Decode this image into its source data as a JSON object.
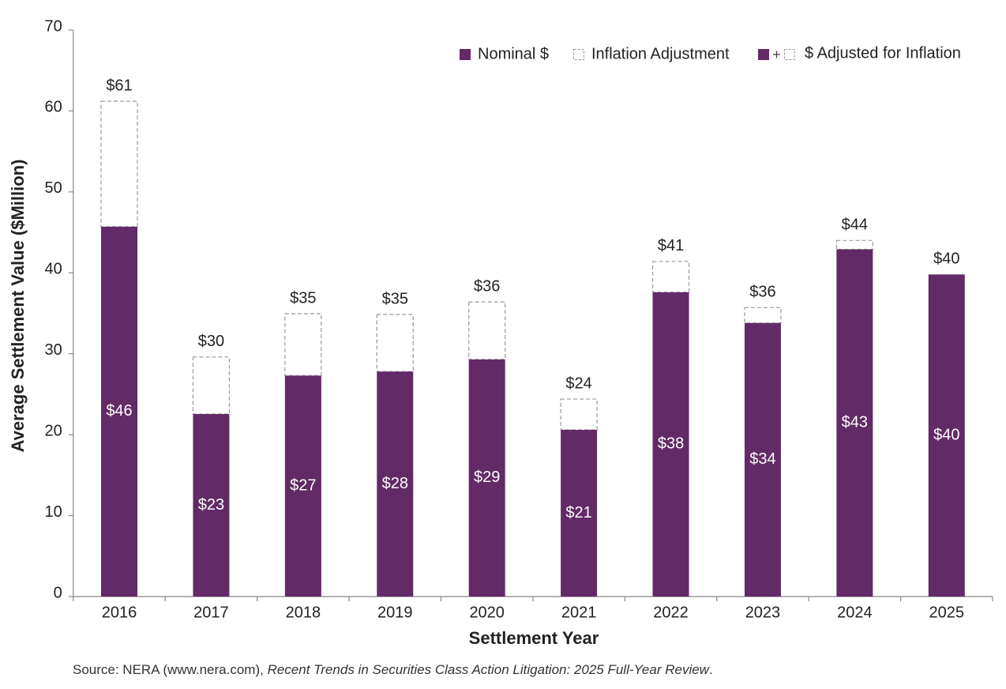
{
  "chart_data": {
    "type": "stacked_bar",
    "x_label": "Settlement Year",
    "y_label": "Average Settlement Value ($Million)",
    "categories": [
      "2016",
      "2017",
      "2018",
      "2019",
      "2020",
      "2021",
      "2022",
      "2023",
      "2024",
      "2025"
    ],
    "series": [
      {
        "name": "Nominal $",
        "color": "#622a66",
        "values": [
          45.7,
          22.55,
          27.3,
          27.8,
          29.3,
          20.6,
          37.6,
          33.8,
          42.9,
          39.8
        ],
        "value_labels": [
          "$46",
          "$23",
          "$27",
          "$28",
          "$29",
          "$21",
          "$38",
          "$34",
          "$43",
          "$40"
        ]
      },
      {
        "name": "Inflation Adjustment",
        "color": "#999999",
        "style": "dashed",
        "values": [
          15.5,
          7.05,
          7.65,
          7.05,
          7.1,
          3.8,
          3.8,
          1.9,
          1.1,
          0
        ]
      }
    ],
    "totals": {
      "name": "$ Adjusted for Inflation",
      "values": [
        61.2,
        29.6,
        34.95,
        34.85,
        36.4,
        24.4,
        41.4,
        35.7,
        44.0,
        39.8
      ],
      "value_labels": [
        "$61",
        "$30",
        "$35",
        "$35",
        "$36",
        "$24",
        "$41",
        "$36",
        "$44",
        "$40"
      ]
    },
    "ylim": [
      0,
      70
    ],
    "yticks": [
      0,
      10,
      20,
      30,
      40,
      50,
      60,
      70
    ],
    "grid": false,
    "legend": "top-right",
    "source": {
      "prefix": "Source: NERA (www.nera.com), ",
      "title": "Recent Trends in Securities Class Action Litigation: 2025 Full-Year Review",
      "suffix": "."
    }
  }
}
